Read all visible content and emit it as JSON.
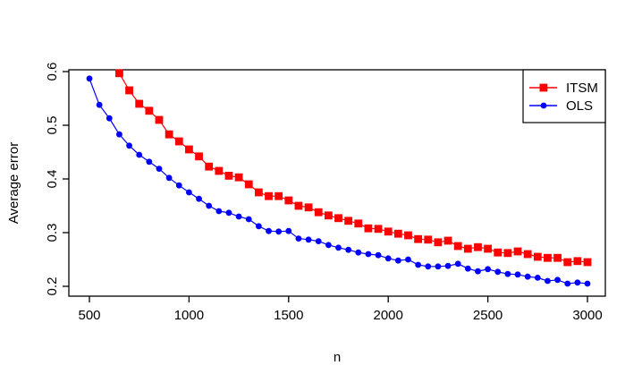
{
  "chart_data": {
    "type": "line",
    "xlabel": "n",
    "ylabel": "Average error",
    "xlim": [
      380,
      3120
    ],
    "ylim": [
      0.195,
      0.605
    ],
    "x_ticks": [
      500,
      1000,
      1500,
      2000,
      2500,
      3000
    ],
    "y_ticks": [
      0.2,
      0.3,
      0.4,
      0.5,
      0.6
    ],
    "grid": false,
    "legend_position": "top-right",
    "background_color": "#ffffff",
    "axis_color": "#000000",
    "series": [
      {
        "name": "ITSM",
        "color": "#ff0000",
        "marker": "square",
        "x": [
          650,
          700,
          750,
          800,
          850,
          900,
          950,
          1000,
          1050,
          1100,
          1150,
          1200,
          1250,
          1300,
          1350,
          1400,
          1450,
          1500,
          1550,
          1600,
          1650,
          1700,
          1750,
          1800,
          1850,
          1900,
          1950,
          2000,
          2050,
          2100,
          2150,
          2200,
          2250,
          2300,
          2350,
          2400,
          2450,
          2500,
          2550,
          2600,
          2650,
          2700,
          2750,
          2800,
          2850,
          2900,
          2950,
          3000
        ],
        "y": [
          0.597,
          0.565,
          0.54,
          0.527,
          0.51,
          0.483,
          0.47,
          0.455,
          0.442,
          0.423,
          0.415,
          0.406,
          0.403,
          0.39,
          0.375,
          0.368,
          0.368,
          0.36,
          0.35,
          0.347,
          0.338,
          0.332,
          0.327,
          0.322,
          0.317,
          0.308,
          0.307,
          0.302,
          0.298,
          0.295,
          0.288,
          0.287,
          0.282,
          0.285,
          0.275,
          0.27,
          0.273,
          0.27,
          0.263,
          0.262,
          0.265,
          0.26,
          0.255,
          0.253,
          0.253,
          0.245,
          0.247,
          0.245
        ]
      },
      {
        "name": "OLS",
        "color": "#0000ff",
        "marker": "circle",
        "x": [
          500,
          550,
          600,
          650,
          700,
          750,
          800,
          850,
          900,
          950,
          1000,
          1050,
          1100,
          1150,
          1200,
          1250,
          1300,
          1350,
          1400,
          1450,
          1500,
          1550,
          1600,
          1650,
          1700,
          1750,
          1800,
          1850,
          1900,
          1950,
          2000,
          2050,
          2100,
          2150,
          2200,
          2250,
          2300,
          2350,
          2400,
          2450,
          2500,
          2550,
          2600,
          2650,
          2700,
          2750,
          2800,
          2850,
          2900,
          2950,
          3000
        ],
        "y": [
          0.587,
          0.538,
          0.513,
          0.483,
          0.462,
          0.445,
          0.432,
          0.419,
          0.402,
          0.388,
          0.375,
          0.363,
          0.35,
          0.34,
          0.337,
          0.33,
          0.325,
          0.312,
          0.303,
          0.302,
          0.303,
          0.289,
          0.287,
          0.284,
          0.277,
          0.272,
          0.268,
          0.263,
          0.26,
          0.258,
          0.252,
          0.248,
          0.25,
          0.24,
          0.237,
          0.237,
          0.238,
          0.242,
          0.233,
          0.228,
          0.232,
          0.227,
          0.223,
          0.222,
          0.218,
          0.216,
          0.21,
          0.212,
          0.205,
          0.207,
          0.205
        ]
      }
    ]
  }
}
